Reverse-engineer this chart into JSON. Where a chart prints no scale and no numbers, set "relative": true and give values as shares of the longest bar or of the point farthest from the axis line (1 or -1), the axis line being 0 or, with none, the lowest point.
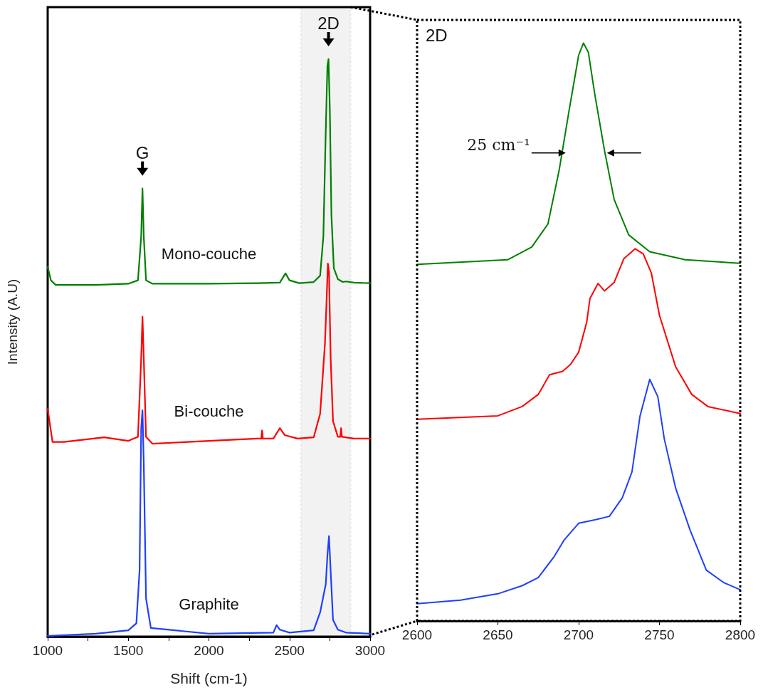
{
  "chart_data": [
    {
      "type": "line",
      "relative": true,
      "xlabel": "Shift (cm-1)",
      "ylabel": "Intensity (A.U)",
      "marker": "none",
      "line_style": "solid",
      "xlim": [
        1000,
        3000
      ],
      "xticks": [
        1000,
        {
          "value": 1250,
          "label": null
        },
        1500,
        {
          "value": 1750,
          "label": null
        },
        2000,
        {
          "value": 2250,
          "label": null
        },
        2500,
        {
          "value": 2750,
          "label": null
        },
        3000
      ],
      "series": [
        {
          "name": "Mono-couche",
          "color": "#008000",
          "x": [
            1000,
            1020,
            1050,
            1300,
            1500,
            1560,
            1580,
            1588,
            1596,
            1610,
            1650,
            2000,
            2300,
            2440,
            2475,
            2500,
            2560,
            2650,
            2690,
            2710,
            2725,
            2735,
            2742,
            2750,
            2760,
            2775,
            2800,
            2830,
            2850,
            2900,
            3000
          ],
          "values": [
            0.64,
            0.617,
            0.609,
            0.609,
            0.611,
            0.617,
            0.693,
            0.776,
            0.693,
            0.617,
            0.611,
            0.611,
            0.612,
            0.613,
            0.629,
            0.617,
            0.612,
            0.614,
            0.625,
            0.693,
            0.877,
            0.988,
            1.0,
            0.914,
            0.73,
            0.638,
            0.619,
            0.614,
            0.615,
            0.613,
            0.612
          ]
        },
        {
          "name": "Bi-couche",
          "color": "#ff0000",
          "x": [
            1000,
            1030,
            1100,
            1350,
            1500,
            1560,
            1580,
            1588,
            1596,
            1610,
            1650,
            2000,
            2300,
            2325,
            2330,
            2335,
            2400,
            2440,
            2470,
            2550,
            2650,
            2690,
            2700,
            2720,
            2730,
            2738,
            2745,
            2755,
            2770,
            2800,
            2815,
            2820,
            2825,
            2900,
            3000
          ],
          "values": [
            0.394,
            0.337,
            0.337,
            0.345,
            0.339,
            0.346,
            0.482,
            0.554,
            0.482,
            0.346,
            0.334,
            0.339,
            0.343,
            0.343,
            0.357,
            0.343,
            0.343,
            0.361,
            0.349,
            0.343,
            0.345,
            0.386,
            0.426,
            0.508,
            0.582,
            0.646,
            0.631,
            0.484,
            0.373,
            0.346,
            0.346,
            0.361,
            0.346,
            0.343,
            0.343
          ]
        },
        {
          "name": "Graphite",
          "color": "#1f3fff",
          "x": [
            1000,
            1300,
            1500,
            1550,
            1570,
            1580,
            1588,
            1596,
            1610,
            1640,
            2000,
            2400,
            2420,
            2440,
            2500,
            2650,
            2690,
            2710,
            2725,
            2735,
            2745,
            2755,
            2770,
            2800,
            2850,
            3000
          ],
          "values": [
            0.001,
            0.005,
            0.011,
            0.023,
            0.115,
            0.361,
            0.392,
            0.3,
            0.066,
            0.015,
            0.005,
            0.007,
            0.02,
            0.012,
            0.007,
            0.011,
            0.042,
            0.07,
            0.091,
            0.14,
            0.174,
            0.115,
            0.029,
            0.012,
            0.007,
            0.005
          ]
        }
      ],
      "annotations": [
        "G",
        "2D"
      ],
      "bands": [
        {
          "axis": "x",
          "from": 2570,
          "to": 2880,
          "color": "#000000"
        }
      ]
    },
    {
      "type": "line",
      "relative": true,
      "marker": "none",
      "line_style": "solid",
      "xlim": [
        2600,
        2800
      ],
      "xticks": [
        2600,
        2650,
        2700,
        2750,
        2800
      ],
      "series": [
        {
          "color": "#008000",
          "x": [
            2600,
            2656,
            2671,
            2681,
            2688,
            2694,
            2700,
            2703,
            2706,
            2710,
            2716,
            2722,
            2731,
            2744,
            2766,
            2800
          ],
          "values": [
            0.617,
            0.625,
            0.647,
            0.687,
            0.781,
            0.882,
            0.979,
            1.0,
            0.984,
            0.911,
            0.814,
            0.729,
            0.668,
            0.639,
            0.625,
            0.619
          ]
        },
        {
          "color": "#ff0000",
          "x": [
            2600,
            2650,
            2665,
            2675,
            2682,
            2690,
            2695,
            2700,
            2705,
            2707,
            2712,
            2716,
            2722,
            2728,
            2735,
            2740,
            2745,
            2750,
            2760,
            2770,
            2780,
            2800
          ],
          "values": [
            0.349,
            0.355,
            0.371,
            0.392,
            0.426,
            0.432,
            0.444,
            0.465,
            0.517,
            0.558,
            0.584,
            0.571,
            0.586,
            0.627,
            0.644,
            0.635,
            0.602,
            0.529,
            0.44,
            0.392,
            0.371,
            0.359
          ]
        },
        {
          "color": "#1f3fff",
          "x": [
            2600,
            2627,
            2650,
            2665,
            2675,
            2685,
            2691,
            2700,
            2710,
            2719,
            2727,
            2733,
            2738,
            2744,
            2749,
            2753,
            2760,
            2769,
            2779,
            2790,
            2800
          ],
          "values": [
            0.03,
            0.036,
            0.047,
            0.061,
            0.075,
            0.112,
            0.14,
            0.169,
            0.175,
            0.181,
            0.213,
            0.258,
            0.355,
            0.418,
            0.388,
            0.315,
            0.23,
            0.157,
            0.088,
            0.066,
            0.054
          ]
        }
      ],
      "annotations": [
        "2D",
        {
          "text": "25 cm⁻¹",
          "x": 2692,
          "y": 0.81
        }
      ]
    }
  ]
}
